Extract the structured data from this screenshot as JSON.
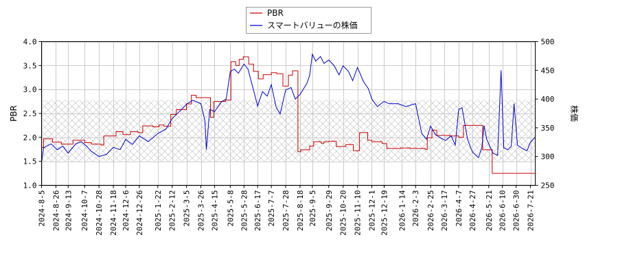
{
  "chart_data": {
    "type": "line",
    "title": "",
    "legend": {
      "placement": "top-center",
      "entries": [
        {
          "name": "PBR",
          "color": "#cc0000"
        },
        {
          "name": "スマートバリューの株価",
          "color": "#0000cc"
        }
      ]
    },
    "y_left": {
      "label": "PBR",
      "range": [
        1.0,
        4.0
      ],
      "ticks": [
        "1.0",
        "1.5",
        "2.0",
        "2.5",
        "3.0",
        "3.5",
        "4.0"
      ]
    },
    "y_right": {
      "label": "株価",
      "range": [
        250,
        500
      ],
      "ticks": [
        "250",
        "300",
        "350",
        "400",
        "450",
        "500"
      ]
    },
    "x_axis": {
      "range": [
        "2024-08-05",
        "2026-07-28"
      ],
      "ticks": [
        "2024-8-5",
        "2024-8-26",
        "2024-9-13",
        "2024-10-7",
        "2024-10-28",
        "2024-11-18",
        "2024-12-6",
        "2024-12-26",
        "2025-1-22",
        "2025-2-12",
        "2025-3-5",
        "2025-3-26",
        "2025-4-15",
        "2025-5-8",
        "2025-5-28",
        "2025-6-17",
        "2025-7-7",
        "2025-7-28",
        "2025-8-18",
        "2025-9-5",
        "2025-9-29",
        "2025-10-20",
        "2025-11-10",
        "2025-12-1",
        "2025-12-19",
        "2026-1-14",
        "2026-2-3",
        "2026-2-25",
        "2026-3-17",
        "2026-4-7",
        "2026-4-27",
        "2026-5-21",
        "2026-6-10",
        "2026-6-30",
        "2026-7-21"
      ]
    },
    "grid": true,
    "reference_band": {
      "y_left_range": [
        1.5,
        2.78
      ],
      "style": "crosshatch"
    },
    "series": [
      {
        "name": "PBR",
        "axis": "left",
        "color": "#cc0000",
        "points": [
          [
            "2024-08-05",
            1.79
          ],
          [
            "2024-08-08",
            1.97
          ],
          [
            "2024-08-21",
            1.9
          ],
          [
            "2024-09-03",
            1.86
          ],
          [
            "2024-09-20",
            1.94
          ],
          [
            "2024-10-07",
            1.89
          ],
          [
            "2024-10-17",
            1.86
          ],
          [
            "2024-10-31",
            1.84
          ],
          [
            "2024-11-04",
            2.03
          ],
          [
            "2024-11-22",
            2.12
          ],
          [
            "2024-12-02",
            2.06
          ],
          [
            "2024-12-13",
            2.12
          ],
          [
            "2024-12-24",
            2.1
          ],
          [
            "2024-12-31",
            2.24
          ],
          [
            "2025-01-15",
            2.22
          ],
          [
            "2025-01-24",
            2.26
          ],
          [
            "2025-01-31",
            2.23
          ],
          [
            "2025-02-10",
            2.48
          ],
          [
            "2025-02-18",
            2.58
          ],
          [
            "2025-03-05",
            2.7
          ],
          [
            "2025-03-12",
            2.88
          ],
          [
            "2025-03-19",
            2.83
          ],
          [
            "2025-04-09",
            2.42
          ],
          [
            "2025-04-14",
            2.75
          ],
          [
            "2025-05-01",
            2.78
          ],
          [
            "2025-05-09",
            3.58
          ],
          [
            "2025-05-16",
            3.5
          ],
          [
            "2025-05-21",
            3.63
          ],
          [
            "2025-05-27",
            3.68
          ],
          [
            "2025-06-04",
            3.53
          ],
          [
            "2025-06-11",
            3.38
          ],
          [
            "2025-06-18",
            3.22
          ],
          [
            "2025-06-25",
            3.31
          ],
          [
            "2025-07-07",
            3.35
          ],
          [
            "2025-07-15",
            3.33
          ],
          [
            "2025-07-24",
            3.07
          ],
          [
            "2025-08-01",
            3.3
          ],
          [
            "2025-08-07",
            3.39
          ],
          [
            "2025-08-15",
            1.7
          ],
          [
            "2025-08-19",
            1.74
          ],
          [
            "2025-09-01",
            1.82
          ],
          [
            "2025-09-07",
            1.91
          ],
          [
            "2025-09-18",
            1.88
          ],
          [
            "2025-09-22",
            1.91
          ],
          [
            "2025-09-29",
            1.92
          ],
          [
            "2025-10-10",
            1.81
          ],
          [
            "2025-10-24",
            1.85
          ],
          [
            "2025-11-04",
            1.72
          ],
          [
            "2025-11-13",
            2.1
          ],
          [
            "2025-11-25",
            1.94
          ],
          [
            "2025-12-01",
            1.91
          ],
          [
            "2025-12-16",
            1.87
          ],
          [
            "2025-12-23",
            1.77
          ],
          [
            "2026-01-12",
            1.78
          ],
          [
            "2026-01-26",
            1.77
          ],
          [
            "2026-02-17",
            1.75
          ],
          [
            "2026-02-20",
            1.99
          ],
          [
            "2026-02-27",
            2.15
          ],
          [
            "2026-03-06",
            2.04
          ],
          [
            "2026-03-25",
            2.03
          ],
          [
            "2026-04-07",
            2.0
          ],
          [
            "2026-04-14",
            2.25
          ],
          [
            "2026-05-12",
            1.74
          ],
          [
            "2026-05-26",
            1.25
          ],
          [
            "2026-07-28",
            1.25
          ]
        ]
      },
      {
        "name": "スマートバリューの株価",
        "axis": "right",
        "color": "#0000cc",
        "points": [
          [
            "2024-08-05",
            290
          ],
          [
            "2024-08-08",
            315
          ],
          [
            "2024-08-12",
            318
          ],
          [
            "2024-08-19",
            322
          ],
          [
            "2024-08-28",
            312
          ],
          [
            "2024-09-05",
            318
          ],
          [
            "2024-09-13",
            306
          ],
          [
            "2024-09-24",
            322
          ],
          [
            "2024-10-02",
            326
          ],
          [
            "2024-10-10",
            318
          ],
          [
            "2024-10-17",
            309
          ],
          [
            "2024-10-28",
            300
          ],
          [
            "2024-11-08",
            304
          ],
          [
            "2024-11-18",
            316
          ],
          [
            "2024-11-28",
            312
          ],
          [
            "2024-12-06",
            330
          ],
          [
            "2024-12-16",
            321
          ],
          [
            "2024-12-26",
            336
          ],
          [
            "2025-01-08",
            326
          ],
          [
            "2025-01-22",
            340
          ],
          [
            "2025-02-03",
            348
          ],
          [
            "2025-02-12",
            366
          ],
          [
            "2025-02-24",
            380
          ],
          [
            "2025-03-05",
            391
          ],
          [
            "2025-03-14",
            398
          ],
          [
            "2025-03-26",
            392
          ],
          [
            "2025-04-01",
            362
          ],
          [
            "2025-04-03",
            312
          ],
          [
            "2025-04-08",
            382
          ],
          [
            "2025-04-15",
            378
          ],
          [
            "2025-04-25",
            395
          ],
          [
            "2025-05-02",
            400
          ],
          [
            "2025-05-08",
            448
          ],
          [
            "2025-05-14",
            452
          ],
          [
            "2025-05-20",
            445
          ],
          [
            "2025-05-28",
            461
          ],
          [
            "2025-06-03",
            452
          ],
          [
            "2025-06-10",
            420
          ],
          [
            "2025-06-17",
            388
          ],
          [
            "2025-06-24",
            413
          ],
          [
            "2025-07-01",
            405
          ],
          [
            "2025-07-07",
            425
          ],
          [
            "2025-07-14",
            386
          ],
          [
            "2025-07-20",
            374
          ],
          [
            "2025-07-28",
            416
          ],
          [
            "2025-08-05",
            420
          ],
          [
            "2025-08-11",
            400
          ],
          [
            "2025-08-18",
            408
          ],
          [
            "2025-08-28",
            427
          ],
          [
            "2025-09-01",
            441
          ],
          [
            "2025-09-05",
            478
          ],
          [
            "2025-09-10",
            466
          ],
          [
            "2025-09-17",
            474
          ],
          [
            "2025-09-22",
            462
          ],
          [
            "2025-09-29",
            468
          ],
          [
            "2025-10-07",
            458
          ],
          [
            "2025-10-14",
            442
          ],
          [
            "2025-10-20",
            458
          ],
          [
            "2025-10-28",
            448
          ],
          [
            "2025-11-03",
            432
          ],
          [
            "2025-11-10",
            455
          ],
          [
            "2025-11-19",
            430
          ],
          [
            "2025-11-26",
            418
          ],
          [
            "2025-12-01",
            400
          ],
          [
            "2025-12-09",
            387
          ],
          [
            "2025-12-19",
            396
          ],
          [
            "2025-12-26",
            392
          ],
          [
            "2026-01-08",
            392
          ],
          [
            "2026-01-20",
            387
          ],
          [
            "2026-02-03",
            392
          ],
          [
            "2026-02-12",
            340
          ],
          [
            "2026-02-19",
            330
          ],
          [
            "2026-02-25",
            353
          ],
          [
            "2026-03-04",
            338
          ],
          [
            "2026-03-12",
            332
          ],
          [
            "2026-03-19",
            328
          ],
          [
            "2026-03-27",
            336
          ],
          [
            "2026-04-02",
            320
          ],
          [
            "2026-04-07",
            382
          ],
          [
            "2026-04-12",
            385
          ],
          [
            "2026-04-20",
            330
          ],
          [
            "2026-04-27",
            308
          ],
          [
            "2026-05-06",
            298
          ],
          [
            "2026-05-11",
            316
          ],
          [
            "2026-05-14",
            354
          ],
          [
            "2026-05-18",
            330
          ],
          [
            "2026-05-27",
            306
          ],
          [
            "2026-06-03",
            302
          ],
          [
            "2026-06-08",
            450
          ],
          [
            "2026-06-12",
            315
          ],
          [
            "2026-06-18",
            312
          ],
          [
            "2026-06-23",
            318
          ],
          [
            "2026-06-27",
            392
          ],
          [
            "2026-07-02",
            320
          ],
          [
            "2026-07-09",
            314
          ],
          [
            "2026-07-16",
            310
          ],
          [
            "2026-07-21",
            325
          ],
          [
            "2026-07-28",
            334
          ]
        ]
      }
    ]
  }
}
